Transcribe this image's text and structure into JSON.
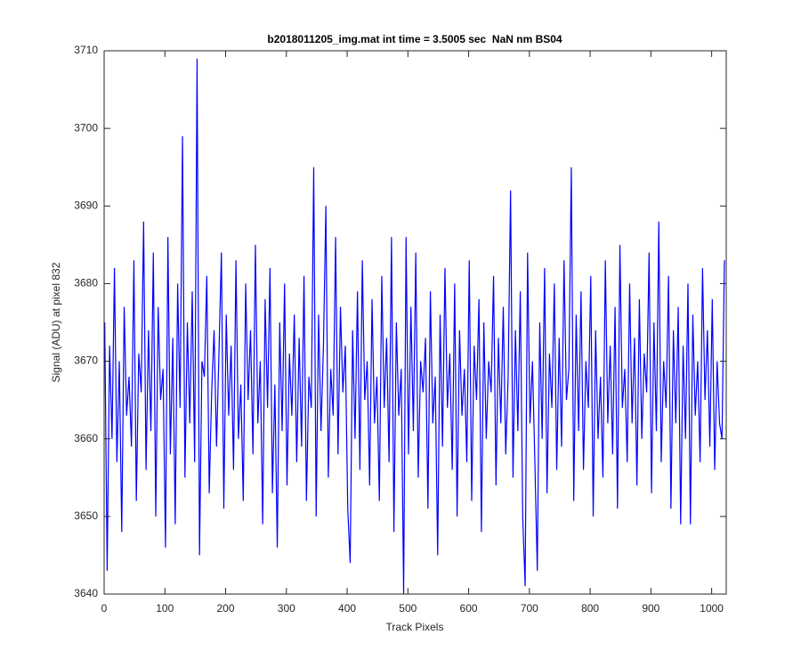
{
  "chart_data": {
    "type": "line",
    "title": "b2018011205_img.mat int time = 3.5005 sec  NaN nm BS04",
    "x_label": "Track Pixels",
    "y_label": "Signal (ADU) at pixel 832",
    "xlim": [
      0,
      1024
    ],
    "ylim": [
      3640,
      3710
    ],
    "xticks": [
      0,
      100,
      200,
      300,
      400,
      500,
      600,
      700,
      800,
      900,
      1000
    ],
    "yticks": [
      3640,
      3650,
      3660,
      3670,
      3680,
      3690,
      3700,
      3710
    ],
    "x": [
      1,
      5,
      9,
      13,
      17,
      21,
      25,
      29,
      33,
      37,
      41,
      45,
      49,
      53,
      57,
      61,
      65,
      69,
      73,
      77,
      81,
      85,
      89,
      93,
      97,
      101,
      105,
      109,
      113,
      117,
      121,
      125,
      129,
      133,
      137,
      141,
      145,
      149,
      153,
      157,
      161,
      165,
      169,
      173,
      177,
      181,
      185,
      189,
      193,
      197,
      201,
      205,
      209,
      213,
      217,
      221,
      225,
      229,
      233,
      237,
      241,
      245,
      249,
      253,
      257,
      261,
      265,
      269,
      273,
      277,
      281,
      285,
      289,
      293,
      297,
      301,
      305,
      309,
      313,
      317,
      321,
      325,
      329,
      333,
      337,
      341,
      345,
      349,
      353,
      357,
      361,
      365,
      369,
      373,
      377,
      381,
      385,
      389,
      393,
      397,
      401,
      405,
      409,
      413,
      417,
      421,
      425,
      429,
      433,
      437,
      441,
      445,
      449,
      453,
      457,
      461,
      465,
      469,
      473,
      477,
      481,
      485,
      489,
      493,
      497,
      501,
      505,
      509,
      513,
      517,
      521,
      525,
      529,
      533,
      537,
      541,
      545,
      549,
      553,
      557,
      561,
      565,
      569,
      573,
      577,
      581,
      585,
      589,
      593,
      597,
      601,
      605,
      609,
      613,
      617,
      621,
      625,
      629,
      633,
      637,
      641,
      645,
      649,
      653,
      657,
      661,
      665,
      669,
      673,
      677,
      681,
      685,
      689,
      693,
      697,
      701,
      705,
      709,
      713,
      717,
      721,
      725,
      729,
      733,
      737,
      741,
      745,
      749,
      753,
      757,
      761,
      765,
      769,
      773,
      777,
      781,
      785,
      789,
      793,
      797,
      801,
      805,
      809,
      813,
      817,
      821,
      825,
      829,
      833,
      837,
      841,
      845,
      849,
      853,
      857,
      861,
      865,
      869,
      873,
      877,
      881,
      885,
      889,
      893,
      897,
      901,
      905,
      909,
      913,
      917,
      921,
      925,
      929,
      933,
      937,
      941,
      945,
      949,
      953,
      957,
      961,
      965,
      969,
      973,
      977,
      981,
      985,
      989,
      993,
      997,
      1001,
      1005,
      1009,
      1013,
      1017,
      1021
    ],
    "series": [
      {
        "name": "signal",
        "color": "#0000ff",
        "values": [
          3675,
          3643,
          3672,
          3660,
          3682,
          3657,
          3670,
          3648,
          3677,
          3663,
          3668,
          3659,
          3683,
          3652,
          3671,
          3666,
          3688,
          3656,
          3674,
          3661,
          3684,
          3650,
          3677,
          3665,
          3669,
          3646,
          3686,
          3658,
          3673,
          3649,
          3680,
          3664,
          3699,
          3655,
          3675,
          3662,
          3679,
          3657,
          3709,
          3645,
          3670,
          3668,
          3681,
          3653,
          3666,
          3674,
          3659,
          3671,
          3684,
          3651,
          3676,
          3663,
          3672,
          3656,
          3683,
          3660,
          3667,
          3652,
          3680,
          3665,
          3674,
          3658,
          3685,
          3662,
          3670,
          3649,
          3678,
          3664,
          3682,
          3653,
          3667,
          3646,
          3675,
          3661,
          3680,
          3654,
          3671,
          3663,
          3676,
          3657,
          3673,
          3659,
          3681,
          3652,
          3668,
          3664,
          3695,
          3650,
          3676,
          3661,
          3672,
          3690,
          3655,
          3669,
          3663,
          3686,
          3658,
          3677,
          3666,
          3672,
          3651,
          3644,
          3674,
          3660,
          3679,
          3656,
          3683,
          3665,
          3670,
          3654,
          3678,
          3662,
          3668,
          3652,
          3681,
          3664,
          3673,
          3657,
          3686,
          3648,
          3675,
          3663,
          3669,
          3640,
          3686,
          3658,
          3677,
          3661,
          3684,
          3655,
          3670,
          3666,
          3673,
          3651,
          3679,
          3662,
          3668,
          3645,
          3676,
          3659,
          3682,
          3664,
          3671,
          3656,
          3680,
          3650,
          3674,
          3663,
          3669,
          3657,
          3683,
          3652,
          3672,
          3665,
          3678,
          3648,
          3675,
          3660,
          3670,
          3666,
          3681,
          3654,
          3673,
          3662,
          3677,
          3658,
          3668,
          3692,
          3655,
          3674,
          3661,
          3679,
          3650,
          3641,
          3684,
          3662,
          3670,
          3657,
          3643,
          3675,
          3660,
          3682,
          3653,
          3671,
          3664,
          3680,
          3656,
          3673,
          3659,
          3683,
          3665,
          3669,
          3695,
          3652,
          3676,
          3661,
          3679,
          3656,
          3670,
          3664,
          3681,
          3650,
          3674,
          3660,
          3668,
          3655,
          3683,
          3662,
          3672,
          3658,
          3677,
          3651,
          3685,
          3664,
          3669,
          3657,
          3680,
          3662,
          3673,
          3654,
          3678,
          3660,
          3671,
          3666,
          3684,
          3653,
          3675,
          3661,
          3688,
          3657,
          3670,
          3664,
          3681,
          3651,
          3674,
          3662,
          3677,
          3649,
          3672,
          3660,
          3680,
          3649,
          3676,
          3663,
          3670,
          3657,
          3682,
          3665,
          3674,
          3659,
          3678,
          3656,
          3670,
          3662,
          3660,
          3683
        ]
      }
    ]
  }
}
